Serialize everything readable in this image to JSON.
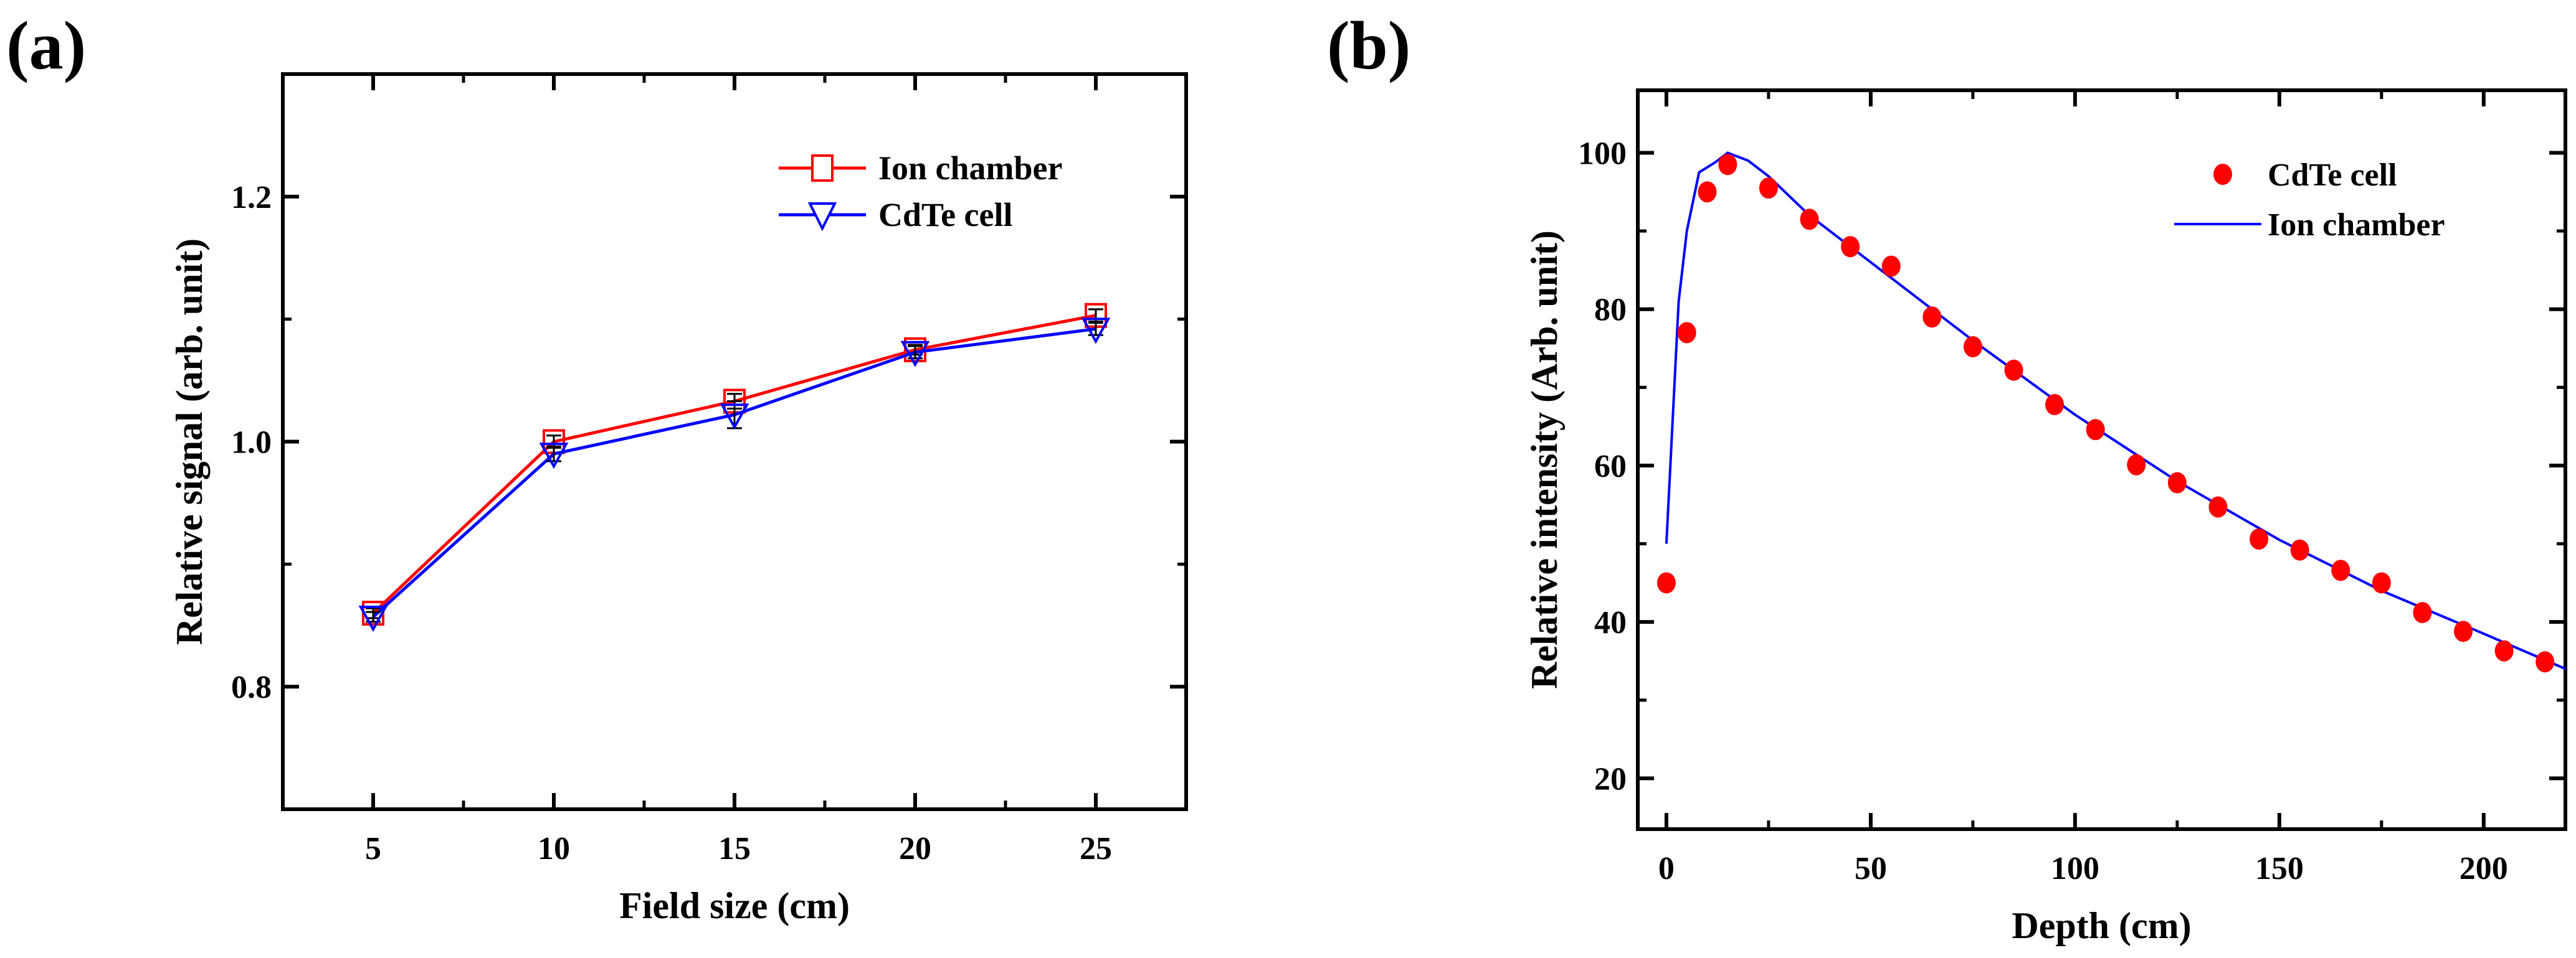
{
  "chart_data": [
    {
      "panel_label": "(a)",
      "type": "line",
      "xlabel": "Field size (cm)",
      "ylabel": "Relative signal (arb. unit)",
      "xlim": [
        2.5,
        27.5
      ],
      "ylim": [
        0.7,
        1.3
      ],
      "xticks": [
        5,
        10,
        15,
        20,
        25
      ],
      "yticks": [
        0.8,
        1.0,
        1.2
      ],
      "ytick_labels": [
        "0.8",
        "1.0",
        "1.2"
      ],
      "grid": false,
      "legend_position": "top-right",
      "x": [
        5,
        10,
        15,
        20,
        25
      ],
      "series": [
        {
          "name": "Ion chamber",
          "color": "#ff0000",
          "marker": "open-square",
          "values": [
            0.86,
            1.0,
            1.033,
            1.075,
            1.103
          ],
          "errors": [
            0.004,
            0.005,
            0.006,
            0.004,
            0.005
          ]
        },
        {
          "name": "CdTe cell",
          "color": "#0000ff",
          "marker": "open-triangle-down",
          "values": [
            0.857,
            0.99,
            1.022,
            1.073,
            1.092
          ],
          "errors": [
            0.004,
            0.006,
            0.011,
            0.005,
            0.005
          ]
        }
      ]
    },
    {
      "panel_label": "(b)",
      "type": "scatter",
      "xlabel": "Depth (cm)",
      "ylabel": "Relative intensity (Arb. unit)",
      "xlim": [
        -7,
        220
      ],
      "ylim": [
        13.5,
        108
      ],
      "xticks": [
        0,
        50,
        100,
        150,
        200
      ],
      "yticks": [
        20,
        40,
        60,
        80,
        100
      ],
      "grid": false,
      "legend_position": "top-right",
      "series": [
        {
          "name": "CdTe cell",
          "color": "#ff0000",
          "style": "filled-circle",
          "x": [
            0,
            5,
            10,
            15,
            25,
            35,
            45,
            55,
            65,
            75,
            85,
            95,
            105,
            115,
            125,
            135,
            145,
            155,
            165,
            175,
            185,
            195,
            205,
            215
          ],
          "values": [
            45,
            77,
            95,
            98.5,
            95.5,
            91.5,
            88,
            85.5,
            79,
            75.2,
            72.2,
            67.8,
            64.6,
            60.1,
            57.8,
            54.7,
            50.6,
            49.2,
            46.6,
            45,
            41.2,
            38.8,
            36.3,
            34.9
          ]
        },
        {
          "name": "Ion chamber",
          "color": "#0000ff",
          "style": "line",
          "x": [
            0,
            3,
            5,
            8,
            12,
            15,
            20,
            25,
            35,
            50,
            75,
            100,
            125,
            150,
            175,
            200,
            220
          ],
          "values": [
            50,
            81,
            90,
            97.5,
            98.8,
            100,
            99,
            97,
            92,
            86,
            76,
            66.5,
            58,
            50.5,
            44,
            38.5,
            34
          ]
        }
      ]
    }
  ]
}
